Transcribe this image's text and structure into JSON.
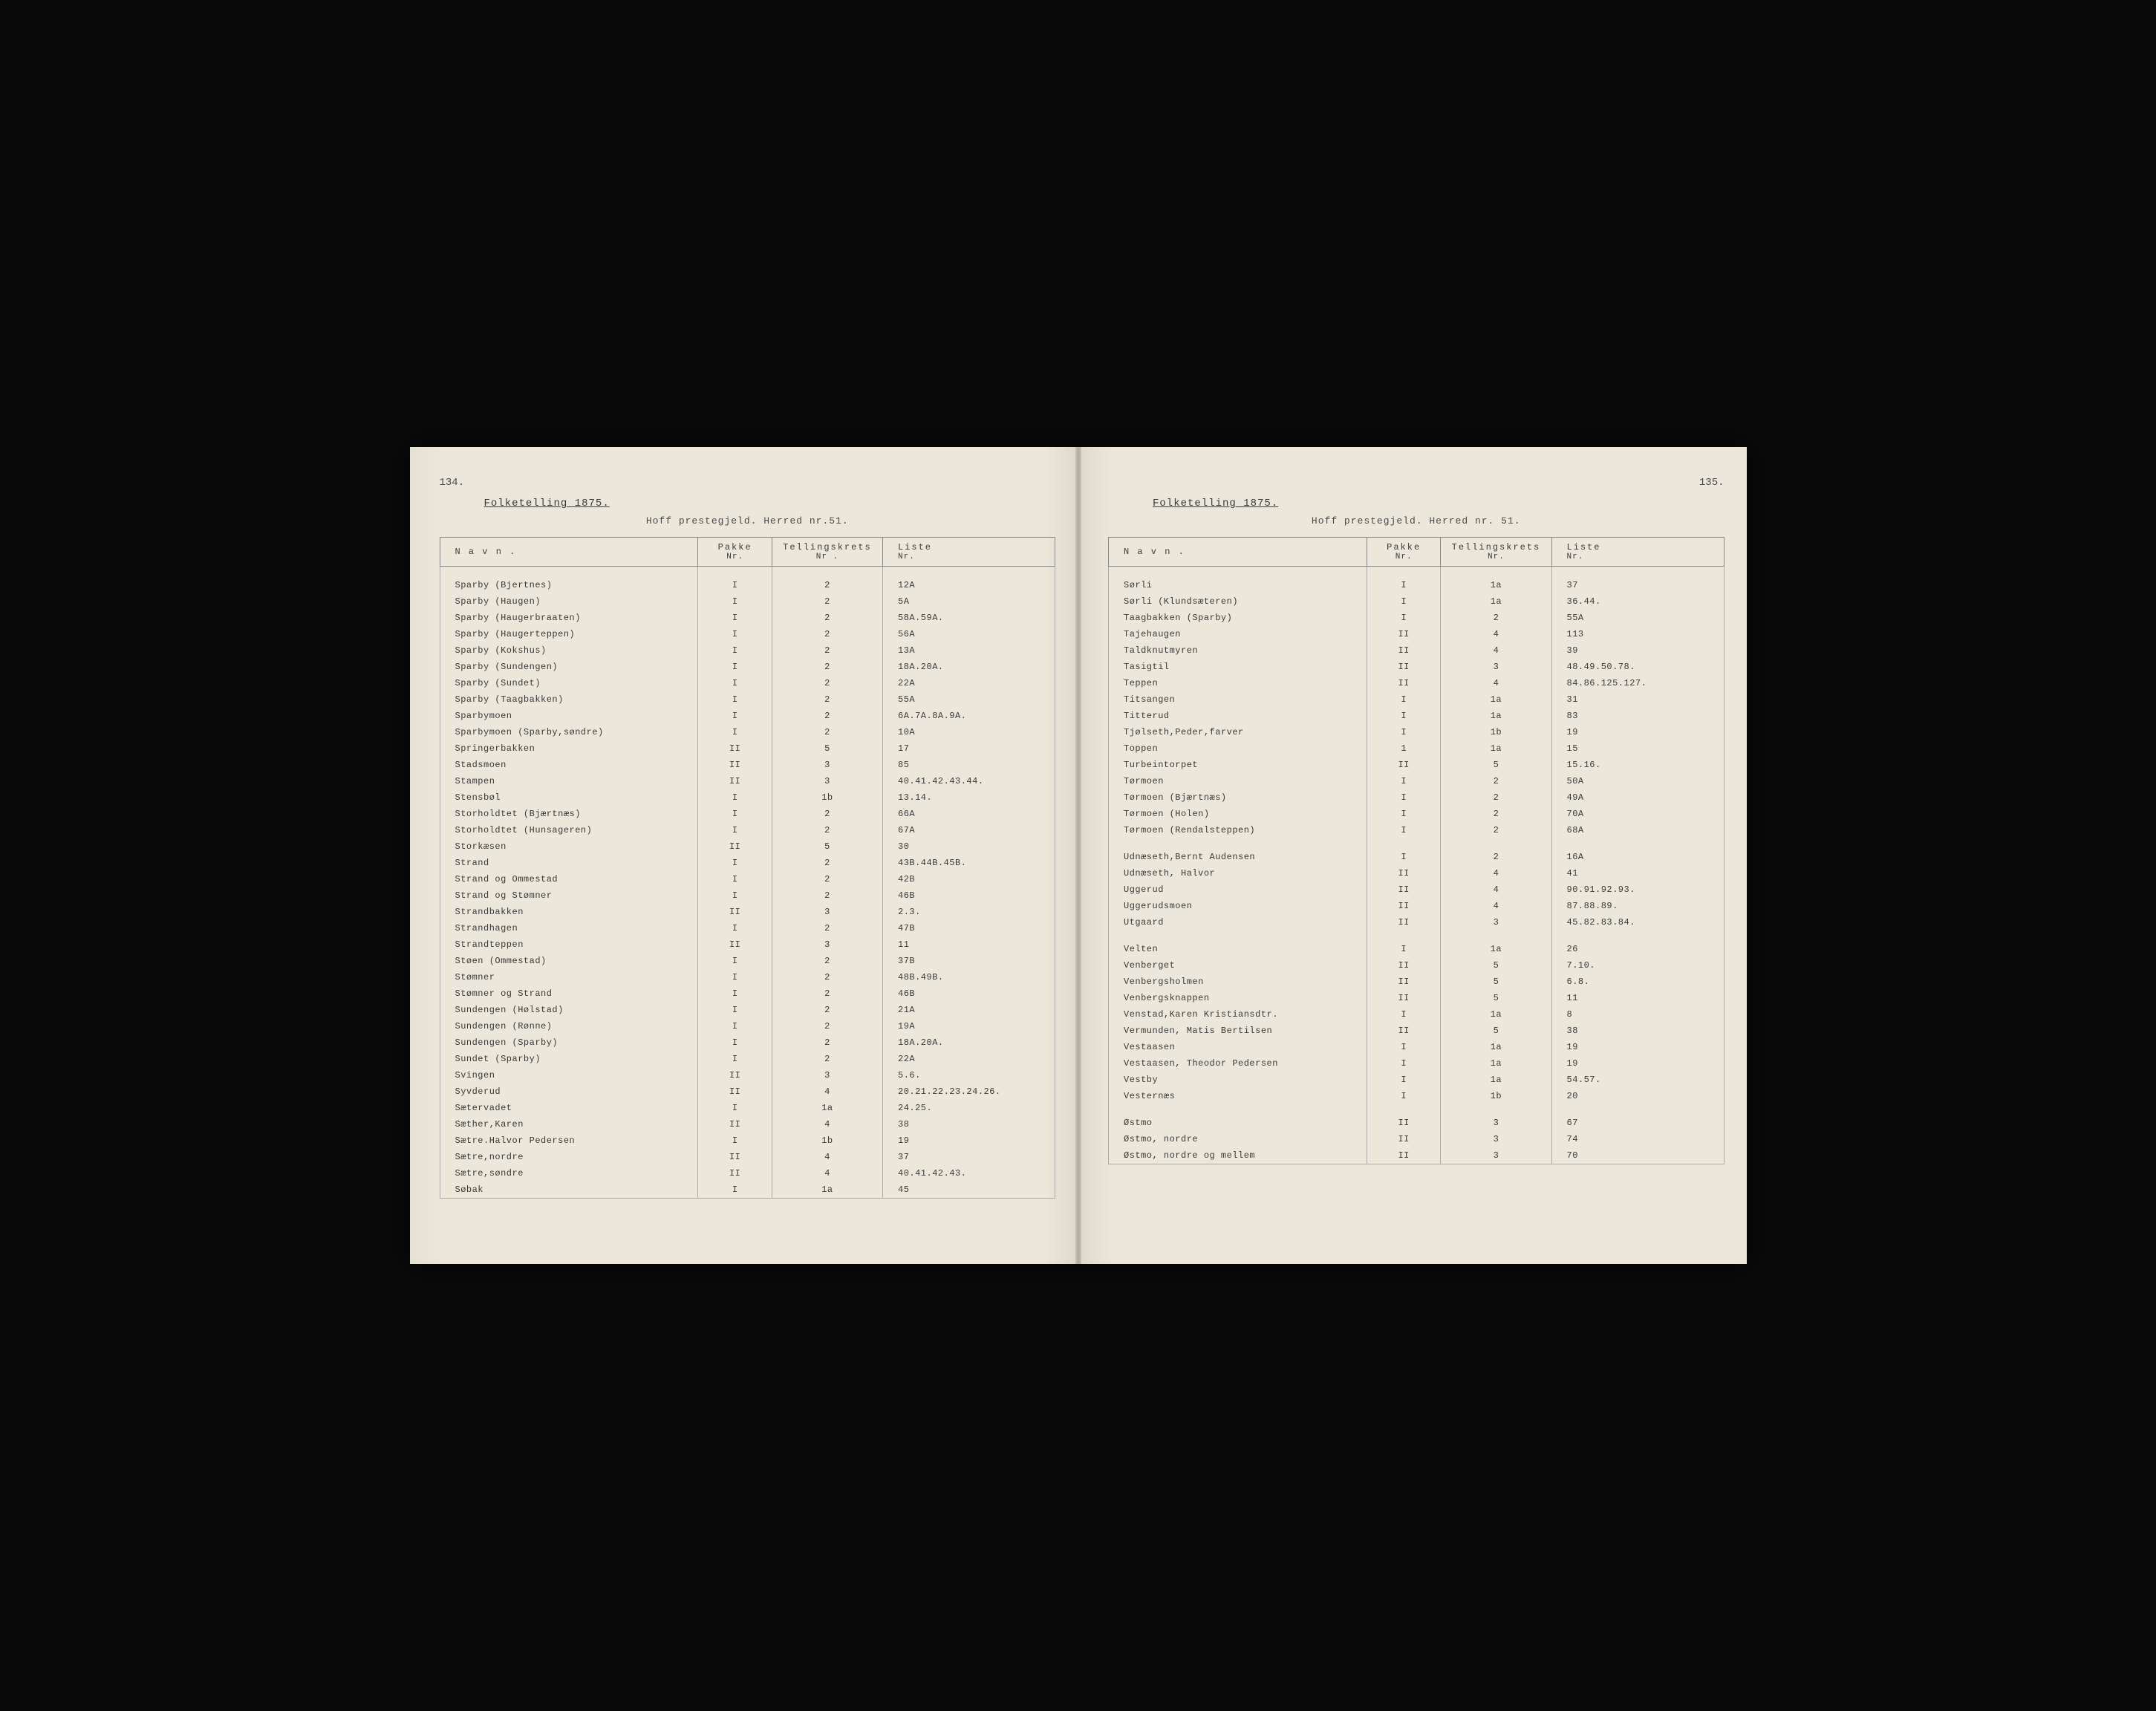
{
  "left": {
    "page_number": "134.",
    "census_title": "Folketelling 1875.",
    "subtitle": "Hoff prestegjeld. Herred nr.51.",
    "headers": {
      "navn": "N a v n .",
      "pakke": "Pakke",
      "pakke_sub": "Nr.",
      "krets": "Tellingskrets",
      "krets_sub": "Nr .",
      "liste": "Liste",
      "liste_sub": "Nr."
    },
    "rows": [
      {
        "n": "Sparby (Bjertnes)",
        "p": "I",
        "k": "2",
        "l": "12A"
      },
      {
        "n": "Sparby (Haugen)",
        "p": "I",
        "k": "2",
        "l": "5A"
      },
      {
        "n": "Sparby (Haugerbraaten)",
        "p": "I",
        "k": "2",
        "l": "58A.59A."
      },
      {
        "n": "Sparby (Haugerteppen)",
        "p": "I",
        "k": "2",
        "l": "56A"
      },
      {
        "n": "Sparby (Kokshus)",
        "p": "I",
        "k": "2",
        "l": "13A"
      },
      {
        "n": "Sparby (Sundengen)",
        "p": "I",
        "k": "2",
        "l": "18A.20A."
      },
      {
        "n": "Sparby (Sundet)",
        "p": "I",
        "k": "2",
        "l": "22A"
      },
      {
        "n": "Sparby (Taagbakken)",
        "p": "I",
        "k": "2",
        "l": "55A"
      },
      {
        "n": "Sparbymoen",
        "p": "I",
        "k": "2",
        "l": "6A.7A.8A.9A."
      },
      {
        "n": "Sparbymoen (Sparby,søndre)",
        "p": "I",
        "k": "2",
        "l": "10A"
      },
      {
        "n": "Springerbakken",
        "p": "II",
        "k": "5",
        "l": "17"
      },
      {
        "n": "Stadsmoen",
        "p": "II",
        "k": "3",
        "l": "85"
      },
      {
        "n": "Stampen",
        "p": "II",
        "k": "3",
        "l": "40.41.42.43.44."
      },
      {
        "n": "Stensbøl",
        "p": "I",
        "k": "1b",
        "l": "13.14."
      },
      {
        "n": "Storholdtet (Bjærtnæs)",
        "p": "I",
        "k": "2",
        "l": "66A"
      },
      {
        "n": "Storholdtet (Hunsageren)",
        "p": "I",
        "k": "2",
        "l": "67A"
      },
      {
        "n": "Storkæsen",
        "p": "II",
        "k": "5",
        "l": "30"
      },
      {
        "n": "Strand",
        "p": "I",
        "k": "2",
        "l": "43B.44B.45B."
      },
      {
        "n": "Strand og Ommestad",
        "p": "I",
        "k": "2",
        "l": "42B"
      },
      {
        "n": "Strand og Stømner",
        "p": "I",
        "k": "2",
        "l": "46B"
      },
      {
        "n": "Strandbakken",
        "p": "II",
        "k": "3",
        "l": "2.3."
      },
      {
        "n": "Strandhagen",
        "p": "I",
        "k": "2",
        "l": "47B"
      },
      {
        "n": "Strandteppen",
        "p": "II",
        "k": "3",
        "l": "11"
      },
      {
        "n": "Støen (Ommestad)",
        "p": "I",
        "k": "2",
        "l": "37B"
      },
      {
        "n": "Stømner",
        "p": "I",
        "k": "2",
        "l": "48B.49B."
      },
      {
        "n": "Stømner og Strand",
        "p": "I",
        "k": "2",
        "l": "46B"
      },
      {
        "n": "Sundengen (Hølstad)",
        "p": "I",
        "k": "2",
        "l": "21A"
      },
      {
        "n": "Sundengen (Rønne)",
        "p": "I",
        "k": "2",
        "l": "19A"
      },
      {
        "n": "Sundengen (Sparby)",
        "p": "I",
        "k": "2",
        "l": "18A.20A."
      },
      {
        "n": "Sundet (Sparby)",
        "p": "I",
        "k": "2",
        "l": "22A"
      },
      {
        "n": "Svingen",
        "p": "II",
        "k": "3",
        "l": "5.6."
      },
      {
        "n": "Syvderud",
        "p": "II",
        "k": "4",
        "l": "20.21.22.23.24.26."
      },
      {
        "n": "Sætervadet",
        "p": "I",
        "k": "1a",
        "l": "24.25."
      },
      {
        "n": "Sæther,Karen",
        "p": "II",
        "k": "4",
        "l": "38"
      },
      {
        "n": "Sætre.Halvor Pedersen",
        "p": "I",
        "k": "1b",
        "l": "19"
      },
      {
        "n": "Sætre,nordre",
        "p": "II",
        "k": "4",
        "l": "37"
      },
      {
        "n": "Sætre,søndre",
        "p": "II",
        "k": "4",
        "l": "40.41.42.43."
      },
      {
        "n": "Søbak",
        "p": "I",
        "k": "1a",
        "l": "45"
      }
    ]
  },
  "right": {
    "page_number": "135.",
    "census_title": "Folketelling 1875.",
    "subtitle": "Hoff prestegjeld. Herred nr. 51.",
    "headers": {
      "navn": "N a v n .",
      "pakke": "Pakke",
      "pakke_sub": "Nr.",
      "krets": "Tellingskrets",
      "krets_sub": "Nr.",
      "liste": "Liste",
      "liste_sub": "Nr."
    },
    "groups": [
      [
        {
          "n": "Sørli",
          "p": "I",
          "k": "1a",
          "l": "37"
        },
        {
          "n": "Sørli (Klundsæteren)",
          "p": "I",
          "k": "1a",
          "l": "36.44."
        },
        {
          "n": "Taagbakken (Sparby)",
          "p": "I",
          "k": "2",
          "l": "55A"
        },
        {
          "n": "Tajehaugen",
          "p": "II",
          "k": "4",
          "l": "113"
        },
        {
          "n": "Taldknutmyren",
          "p": "II",
          "k": "4",
          "l": "39"
        },
        {
          "n": "Tasigtil",
          "p": "II",
          "k": "3",
          "l": "48.49.50.78."
        },
        {
          "n": "Teppen",
          "p": "II",
          "k": "4",
          "l": "84.86.125.127."
        },
        {
          "n": "Titsangen",
          "p": "I",
          "k": "1a",
          "l": "31"
        },
        {
          "n": "Titterud",
          "p": "I",
          "k": "1a",
          "l": "83"
        },
        {
          "n": "Tjølseth,Peder,farver",
          "p": "I",
          "k": "1b",
          "l": "19"
        },
        {
          "n": "Toppen",
          "p": "1",
          "k": "1a",
          "l": "15"
        },
        {
          "n": "Turbeintorpet",
          "p": "II",
          "k": "5",
          "l": "15.16."
        },
        {
          "n": "Tørmoen",
          "p": "I",
          "k": "2",
          "l": "50A"
        },
        {
          "n": "Tørmoen (Bjærtnæs)",
          "p": "I",
          "k": "2",
          "l": "49A"
        },
        {
          "n": "Tørmoen (Holen)",
          "p": "I",
          "k": "2",
          "l": "70A"
        },
        {
          "n": "Tørmoen (Rendalsteppen)",
          "p": "I",
          "k": "2",
          "l": "68A"
        }
      ],
      [
        {
          "n": "Udnæseth,Bernt Audensen",
          "p": "I",
          "k": "2",
          "l": "16A"
        },
        {
          "n": "Udnæseth, Halvor",
          "p": "II",
          "k": "4",
          "l": "41"
        },
        {
          "n": "Uggerud",
          "p": "II",
          "k": "4",
          "l": "90.91.92.93."
        },
        {
          "n": "Uggerudsmoen",
          "p": "II",
          "k": "4",
          "l": "87.88.89."
        },
        {
          "n": "Utgaard",
          "p": "II",
          "k": "3",
          "l": "45.82.83.84."
        }
      ],
      [
        {
          "n": "Velten",
          "p": "I",
          "k": "1a",
          "l": "26"
        },
        {
          "n": "Venberget",
          "p": "II",
          "k": "5",
          "l": "7.10."
        },
        {
          "n": "Venbergsholmen",
          "p": "II",
          "k": "5",
          "l": "6.8."
        },
        {
          "n": "Venbergsknappen",
          "p": "II",
          "k": "5",
          "l": "11"
        },
        {
          "n": "Venstad,Karen Kristiansdtr.",
          "p": "I",
          "k": "1a",
          "l": "8"
        },
        {
          "n": "Vermunden, Matis Bertilsen",
          "p": "II",
          "k": "5",
          "l": "38"
        },
        {
          "n": "Vestaasen",
          "p": "I",
          "k": "1a",
          "l": "19"
        },
        {
          "n": "Vestaasen, Theodor Pedersen",
          "p": "I",
          "k": "1a",
          "l": "19"
        },
        {
          "n": "Vestby",
          "p": "I",
          "k": "1a",
          "l": "54.57."
        },
        {
          "n": "Vesternæs",
          "p": "I",
          "k": "1b",
          "l": "20"
        }
      ],
      [
        {
          "n": "Østmo",
          "p": "II",
          "k": "3",
          "l": "67"
        },
        {
          "n": "Østmo, nordre",
          "p": "II",
          "k": "3",
          "l": "74"
        },
        {
          "n": "Østmo, nordre og mellem",
          "p": "II",
          "k": "3",
          "l": "70"
        }
      ]
    ]
  },
  "colors": {
    "paper": "#ebe7db",
    "ink": "#3a3a3a",
    "border": "#888888",
    "background": "#0a0a0a"
  }
}
